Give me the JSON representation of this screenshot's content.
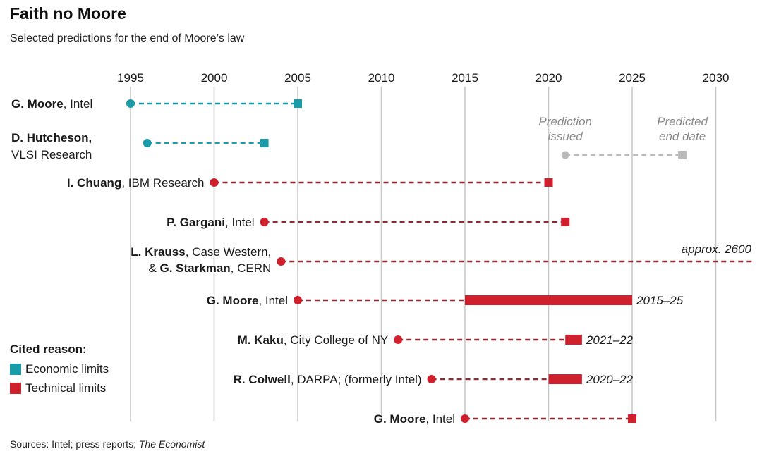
{
  "title": "Faith no Moore",
  "subtitle": "Selected predictions for the end of Moore’s law",
  "legend": {
    "title": "Cited reason:",
    "items": [
      {
        "label": "Economic limits",
        "color": "#1a9ca8"
      },
      {
        "label": "Technical limits",
        "color": "#d0202e"
      }
    ]
  },
  "key": {
    "issued_label": "Prediction issued",
    "end_label": "Predicted end date",
    "color": "#bbbbbb"
  },
  "source": {
    "prefix": "Sources: Intel; press reports; ",
    "publication": "The Economist"
  },
  "chart_data": {
    "type": "timeline",
    "title": "Faith no Moore",
    "subtitle": "Selected predictions for the end of Moore’s law",
    "xticks": [
      1995,
      2000,
      2005,
      2010,
      2015,
      2020,
      2025,
      2030
    ],
    "xlim": [
      1994.5,
      2032
    ],
    "grid": true,
    "legend_position": "bottom-left",
    "reasons": {
      "economic": "Economic limits",
      "technical": "Technical limits"
    },
    "predictions": [
      {
        "who": "G. Moore",
        "org": ", Intel",
        "issued": 1995,
        "end": 2005,
        "reason": "economic"
      },
      {
        "who": "D. Hutcheson,",
        "org": "VLSI Research",
        "issued": 1996,
        "end": 2003,
        "reason": "economic"
      },
      {
        "who": "I. Chuang",
        "org": ", IBM Research",
        "issued": 2000,
        "end": 2020,
        "reason": "technical"
      },
      {
        "who": "P. Gargani",
        "org": ", Intel",
        "issued": 2003,
        "end": 2021,
        "reason": "technical"
      },
      {
        "who": "L. Krauss",
        "org": ", Case Western,",
        "line2_prefix": "& ",
        "who2": "G. Starkman",
        "org2": ", CERN",
        "issued": 2004,
        "end": 2600,
        "end_label": "approx. 2600",
        "reason": "technical"
      },
      {
        "who": "G. Moore",
        "org": ", Intel",
        "issued": 2005,
        "end_range": [
          2015,
          2025
        ],
        "end_label": "2015–25",
        "reason": "technical"
      },
      {
        "who": "M. Kaku",
        "org": ", City College of NY",
        "issued": 2011,
        "end_range": [
          2021,
          2022
        ],
        "end_label": "2021–22",
        "reason": "technical"
      },
      {
        "who": "R. Colwell",
        "org": ", DARPA; (formerly Intel)",
        "issued": 2013,
        "end_range": [
          2020,
          2022
        ],
        "end_label": "2020–22",
        "reason": "technical"
      },
      {
        "who": "G. Moore",
        "org": ", Intel",
        "issued": 2015,
        "end": 2025,
        "reason": "technical"
      }
    ]
  }
}
